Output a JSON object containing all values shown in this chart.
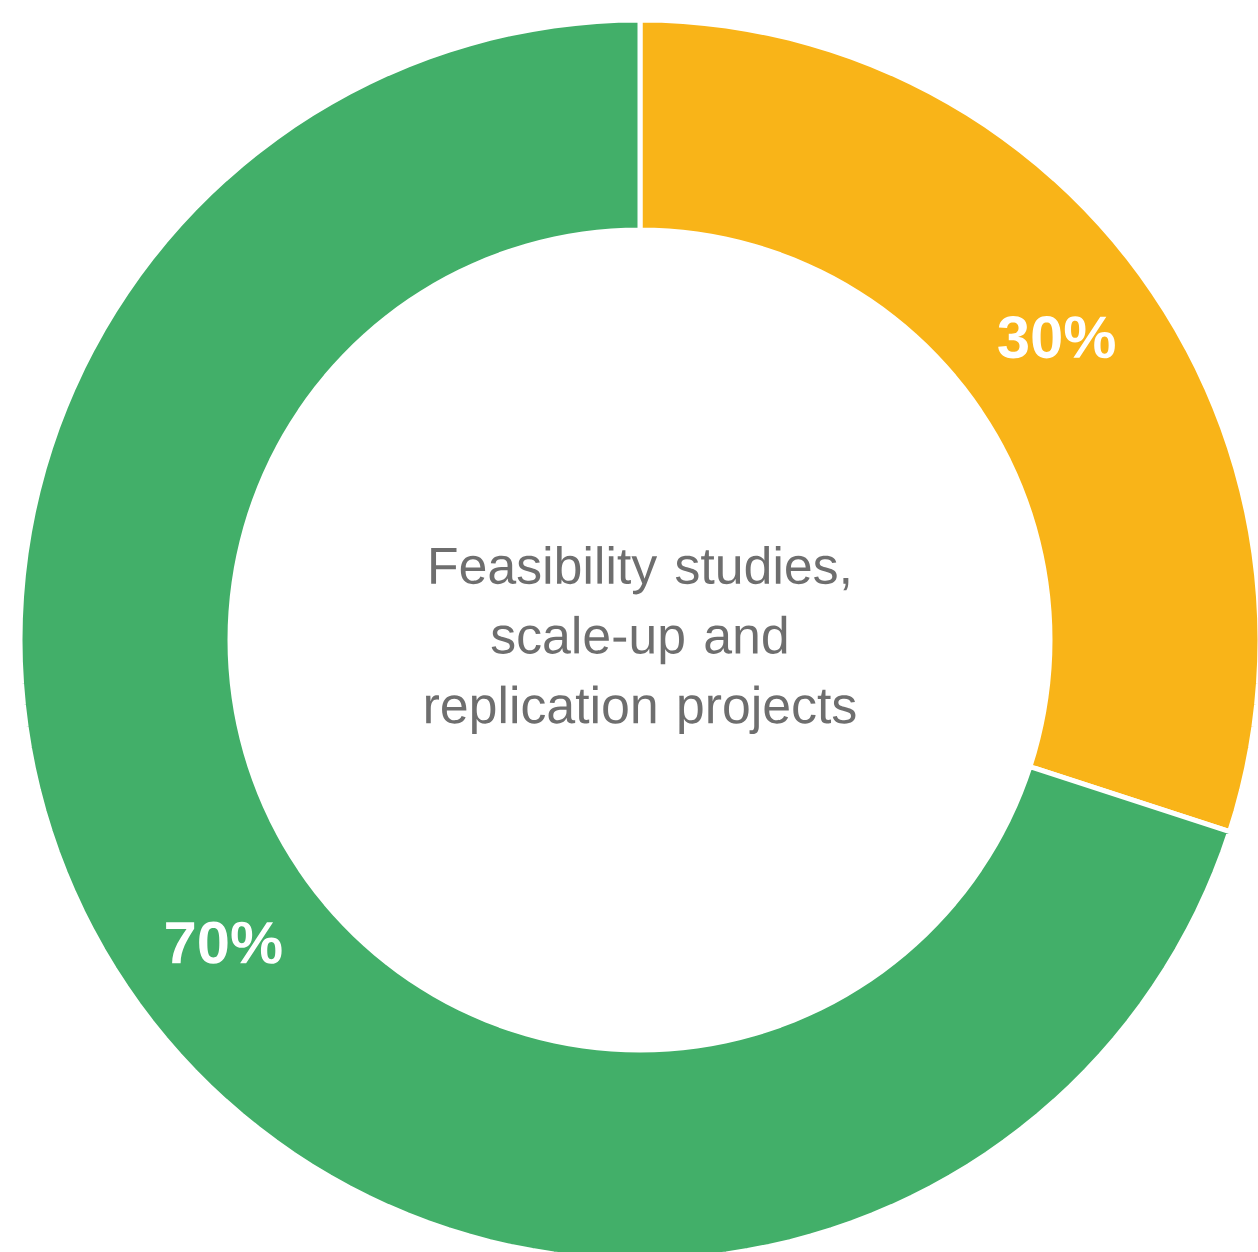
{
  "chart_data": {
    "type": "donut",
    "title": "Feasibility studies, scale-up and replication projects",
    "categories": [
      null,
      null
    ],
    "values": [
      30,
      70
    ],
    "value_labels": [
      "30%",
      "70%"
    ],
    "colors": [
      "#f9b418",
      "#42af69"
    ]
  }
}
